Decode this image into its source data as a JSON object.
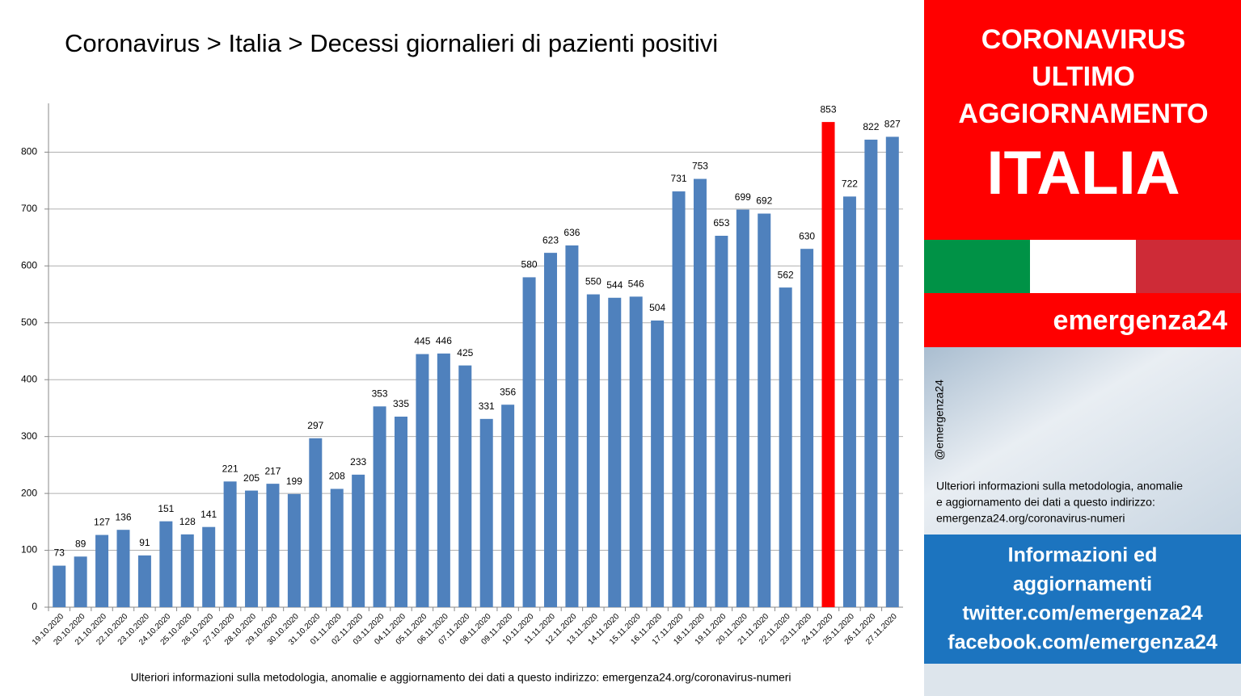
{
  "chart_data": {
    "type": "bar",
    "title": "Coronavirus > Italia > Decessi giornalieri di pazienti positivi",
    "note": "Ulteriori informazioni sulla metodologia, anomalie e aggiornamento dei dati a questo indirizzo: emergenza24.org/coronavirus-numeri",
    "categories": [
      "19.10.2020",
      "20.10.2020",
      "21.10.2020",
      "22.10.2020",
      "23.10.2020",
      "24.10.2020",
      "25.10.2020",
      "26.10.2020",
      "27.10.2020",
      "28.10.2020",
      "29.10.2020",
      "30.10.2020",
      "31.10.2020",
      "01.11.2020",
      "02.11.2020",
      "03.11.2020",
      "04.11.2020",
      "05.11.2020",
      "06.11.2020",
      "07.11.2020",
      "08.11.2020",
      "09.11.2020",
      "10.11.2020",
      "11.11.2020",
      "12.11.2020",
      "13.11.2020",
      "14.11.2020",
      "15.11.2020",
      "16.11.2020",
      "17.11.2020",
      "18.11.2020",
      "19.11.2020",
      "20.11.2020",
      "21.11.2020",
      "22.11.2020",
      "23.11.2020",
      "24.11.2020",
      "25.11.2020",
      "26.11.2020",
      "27.11.2020"
    ],
    "values": [
      73,
      89,
      127,
      136,
      91,
      151,
      128,
      141,
      221,
      205,
      217,
      199,
      297,
      208,
      233,
      353,
      335,
      445,
      446,
      425,
      331,
      356,
      580,
      623,
      636,
      550,
      544,
      546,
      504,
      731,
      753,
      653,
      699,
      692,
      562,
      630,
      853,
      722,
      822,
      827
    ],
    "colors": [
      "#4f81bd",
      "#4f81bd",
      "#4f81bd",
      "#4f81bd",
      "#4f81bd",
      "#4f81bd",
      "#4f81bd",
      "#4f81bd",
      "#4f81bd",
      "#4f81bd",
      "#4f81bd",
      "#4f81bd",
      "#4f81bd",
      "#4f81bd",
      "#4f81bd",
      "#4f81bd",
      "#4f81bd",
      "#4f81bd",
      "#4f81bd",
      "#4f81bd",
      "#4f81bd",
      "#4f81bd",
      "#4f81bd",
      "#4f81bd",
      "#4f81bd",
      "#4f81bd",
      "#4f81bd",
      "#4f81bd",
      "#4f81bd",
      "#4f81bd",
      "#4f81bd",
      "#4f81bd",
      "#4f81bd",
      "#4f81bd",
      "#4f81bd",
      "#4f81bd",
      "#ff0000",
      "#4f81bd",
      "#4f81bd",
      "#4f81bd"
    ],
    "ylim": [
      0,
      900
    ],
    "yticks": [
      0,
      100,
      200,
      300,
      400,
      500,
      600,
      700,
      800
    ],
    "grid": true
  },
  "sidebar": {
    "header": [
      "CORONAVIRUS",
      "ULTIMO",
      "AGGIORNAMENTO"
    ],
    "country": "ITALIA",
    "brand": "emergenza24",
    "handle": "@emergenza24",
    "info": [
      "Ulteriori informazioni sulla metodologia, anomalie",
      "e aggiornamento dei dati a questo indirizzo:",
      "emergenza24.org/coronavirus-numeri"
    ],
    "contacts": [
      "Informazioni ed",
      "aggiornamenti",
      "twitter.com/emergenza24",
      "facebook.com/emergenza24"
    ]
  }
}
